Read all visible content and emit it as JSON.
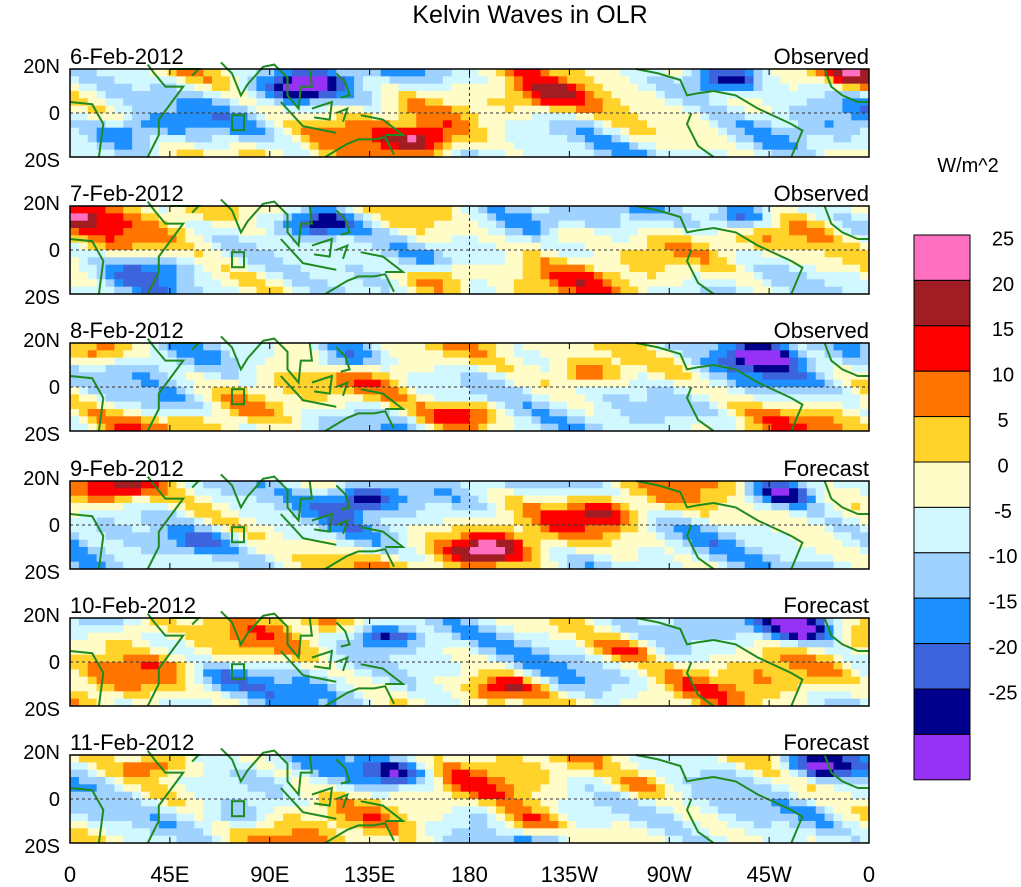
{
  "chart_data": {
    "type": "heatmap",
    "title": "Kelvin Waves in OLR",
    "units_label": "W/m^2",
    "lat_ticks": [
      "20N",
      "0",
      "20S"
    ],
    "lon_ticks": [
      "0",
      "45E",
      "90E",
      "135E",
      "180",
      "135W",
      "90W",
      "45W",
      "0"
    ],
    "lon_range": [
      0,
      360
    ],
    "lat_range": [
      -20,
      20
    ],
    "colorbar": {
      "levels": [
        25,
        20,
        15,
        10,
        5,
        0,
        -5,
        -10,
        -15,
        -20,
        -25
      ],
      "level_labels": [
        "25",
        "20",
        "15",
        "10",
        "5",
        "0",
        "-5",
        "-10",
        "-15",
        "-20",
        "-25"
      ],
      "colors": [
        "#ff70c0",
        "#a01e23",
        "#ff0000",
        "#ff7500",
        "#ffd32a",
        "#fffcc8",
        "#d2f8ff",
        "#a0d2ff",
        "#1e90ff",
        "#3c64dc",
        "#00008c",
        "#9632f5"
      ]
    },
    "panels": [
      {
        "date": "6-Feb-2012",
        "status": "Observed",
        "seed": 1,
        "phase": 0.0
      },
      {
        "date": "7-Feb-2012",
        "status": "Observed",
        "seed": 2,
        "phase": 0.35
      },
      {
        "date": "8-Feb-2012",
        "status": "Observed",
        "seed": 3,
        "phase": 0.7
      },
      {
        "date": "9-Feb-2012",
        "status": "Forecast",
        "seed": 4,
        "phase": 1.05
      },
      {
        "date": "10-Feb-2012",
        "status": "Forecast",
        "seed": 5,
        "phase": 1.4
      },
      {
        "date": "11-Feb-2012",
        "status": "Forecast",
        "seed": 6,
        "phase": 1.75
      }
    ]
  }
}
